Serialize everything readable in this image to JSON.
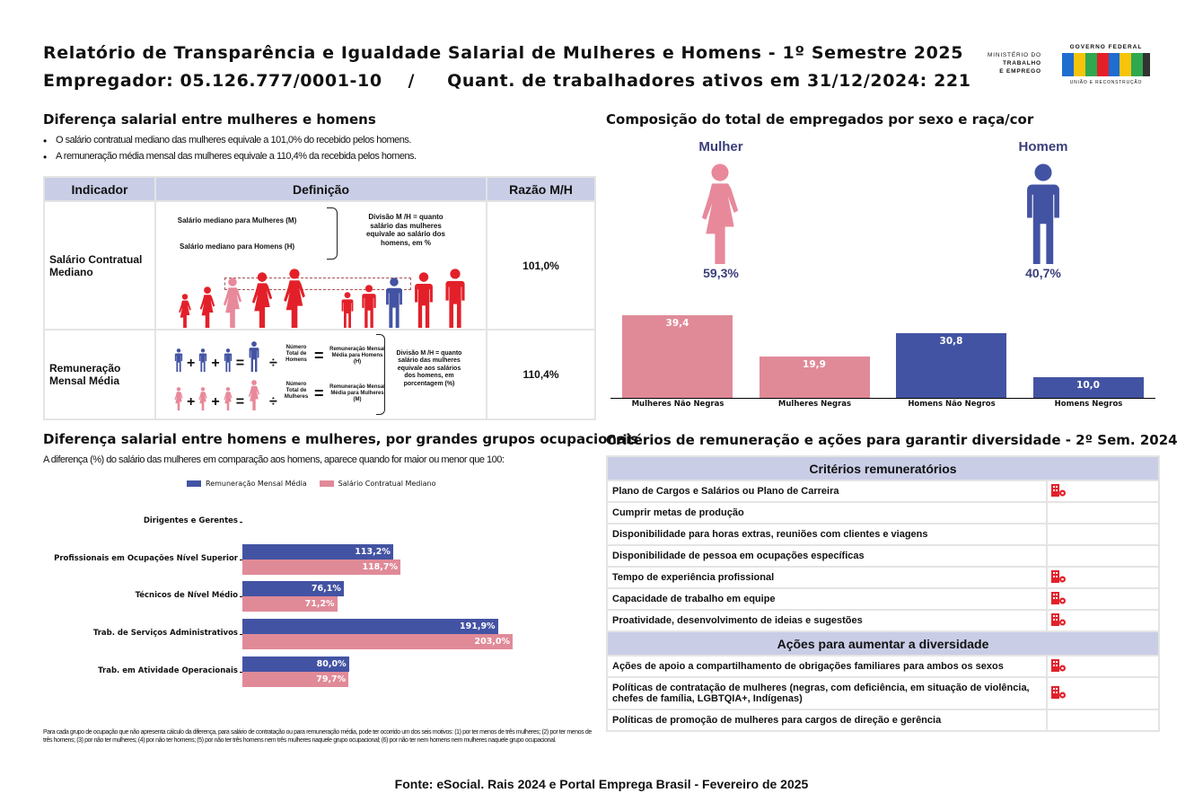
{
  "header": {
    "title": "Relatório de Transparência e Igualdade Salarial de Mulheres e Homens - 1º Semestre 2025",
    "subtitle": "Empregador: 05.126.777/0001-10    /     Quant. de trabalhadores ativos em 31/12/2024: 221",
    "logo_ministry": [
      "MINISTÉRIO DO",
      "TRABALHO",
      "E EMPREGO"
    ],
    "logo_gov": {
      "top": "GOVERNO FEDERAL",
      "word": "BRASIL",
      "bottom": "UNIÃO E RECONSTRUÇÃO"
    }
  },
  "pay_gap": {
    "heading": "Diferença salarial entre mulheres e homens",
    "bullets": [
      "O salário contratual mediano das mulheres equivale a 101,0% do recebido pelos homens.",
      "A remuneração média mensal das mulheres equivale a 110,4% da recebida pelos homens."
    ],
    "table": {
      "headers": [
        "Indicador",
        "Definição",
        "Razão M/H"
      ],
      "rows": [
        {
          "indicator": "Salário Contratual Mediano",
          "ratio": "101,0%",
          "def": {
            "m": "Salário mediano para Mulheres (M)",
            "h": "Salário mediano para Homens (H)",
            "explain": "Divisão M /H = quanto salário das mulheres equivale ao salário dos homens, em %"
          }
        },
        {
          "indicator": "Remuneração Mensal Média",
          "ratio": "110,4%",
          "def": {
            "men_total": "Número Total de Homens",
            "men_result": "Remuneração Mensal Média para Homens (H)",
            "women_total": "Número Total de Mulheres",
            "women_result": "Remuneração Mensal Média para Mulheres (M)",
            "explain": "Divisão M /H = quanto salário das mulheres equivale aos salários dos homens, em porcentagem (%)"
          }
        }
      ]
    }
  },
  "occupations": {
    "heading": "Diferença salarial entre homens e mulheres, por grandes grupos ocupacionais",
    "subtitle": "A diferença (%) do salário das mulheres em comparação aos homens, aparece quando for maior ou menor que 100:",
    "footnote": "Para cada grupo de ocupação que não apresenta cálculo da diferença, para salário de contratação ou para remuneração média, pode ter ocorrido um dos seis motivos: (1) por ter menos de três mulheres; (2) por ter menos de três homens; (3) por não ter mulheres; (4) por não ter homens; (5) por não ter três homens nem três mulheres naquele grupo ocupacional; (6) por não ter nem homens nem mulheres naquele grupo ocupacional."
  },
  "composition": {
    "heading": "Composição do total de empregados por sexo e raça/cor",
    "woman_label": "Mulher",
    "man_label": "Homem",
    "woman_pct": "59,3%",
    "man_pct": "40,7%"
  },
  "criteria": {
    "heading": "Critérios de remuneração e ações para garantir diversidade - 2º Sem. 2024",
    "criteria_header": "Critérios remuneratórios",
    "criteria_items": [
      {
        "label": "Plano de Cargos e Salários ou Plano de Carreira",
        "checked": true
      },
      {
        "label": "Cumprir metas de produção",
        "checked": false
      },
      {
        "label": "Disponibilidade para horas extras, reuniões com clientes e viagens",
        "checked": false
      },
      {
        "label": "Disponibilidade de pessoa em ocupações específicas",
        "checked": false
      },
      {
        "label": "Tempo de experiência profissional",
        "checked": true
      },
      {
        "label": "Capacidade de trabalho em equipe",
        "checked": true
      },
      {
        "label": "Proatividade, desenvolvimento de ideias e sugestões",
        "checked": true
      }
    ],
    "actions_header": "Ações para aumentar a diversidade",
    "action_items": [
      {
        "label": "Ações de apoio a compartilhamento de obrigações familiares para ambos os sexos",
        "checked": true
      },
      {
        "label": "Políticas de contratação de mulheres (negras, com deficiência, em situação de violência, chefes de família, LGBTQIA+, Indígenas)",
        "checked": true
      },
      {
        "label": "Políticas de promoção de mulheres para cargos de direção e gerência",
        "checked": false
      }
    ]
  },
  "footer": {
    "source": "Fonte: eSocial. Rais 2024 e Portal Emprega Brasil - Fevereiro de 2025"
  },
  "colors": {
    "blue": "#4353a3",
    "pink": "#e08a98",
    "red": "#e3202a",
    "header_bg": "#c9cde6"
  },
  "chart_data": [
    {
      "type": "bar",
      "orientation": "horizontal",
      "categories": [
        "Dirigentes e Gerentes",
        "Profissionais em Ocupações Nível Superior",
        "Técnicos de Nível Médio",
        "Trab. de Serviços Administrativos",
        "Trab. em Atividade Operacionais"
      ],
      "series": [
        {
          "name": "Remuneração Mensal Média",
          "values": [
            null,
            113.2,
            76.1,
            191.9,
            80.0
          ],
          "labels": [
            "",
            "113,2%",
            "76,1%",
            "191,9%",
            "80,0%"
          ],
          "color": "#4353a3"
        },
        {
          "name": "Salário Contratual Mediano",
          "values": [
            null,
            118.7,
            71.2,
            203.0,
            79.7
          ],
          "labels": [
            "",
            "118,7%",
            "71,2%",
            "203,0%",
            "79,7%"
          ],
          "color": "#e08a98"
        }
      ],
      "legend": "top"
    },
    {
      "type": "bar",
      "categories": [
        "Mulheres Não Negras",
        "Mulheres Negras",
        "Homens Não Negros",
        "Homens Negros"
      ],
      "values": [
        39.4,
        19.9,
        30.8,
        10.0
      ],
      "labels": [
        "39,4",
        "19,9",
        "30,8",
        "10,0"
      ],
      "colors": [
        "#e08a98",
        "#e08a98",
        "#4353a3",
        "#4353a3"
      ]
    }
  ]
}
